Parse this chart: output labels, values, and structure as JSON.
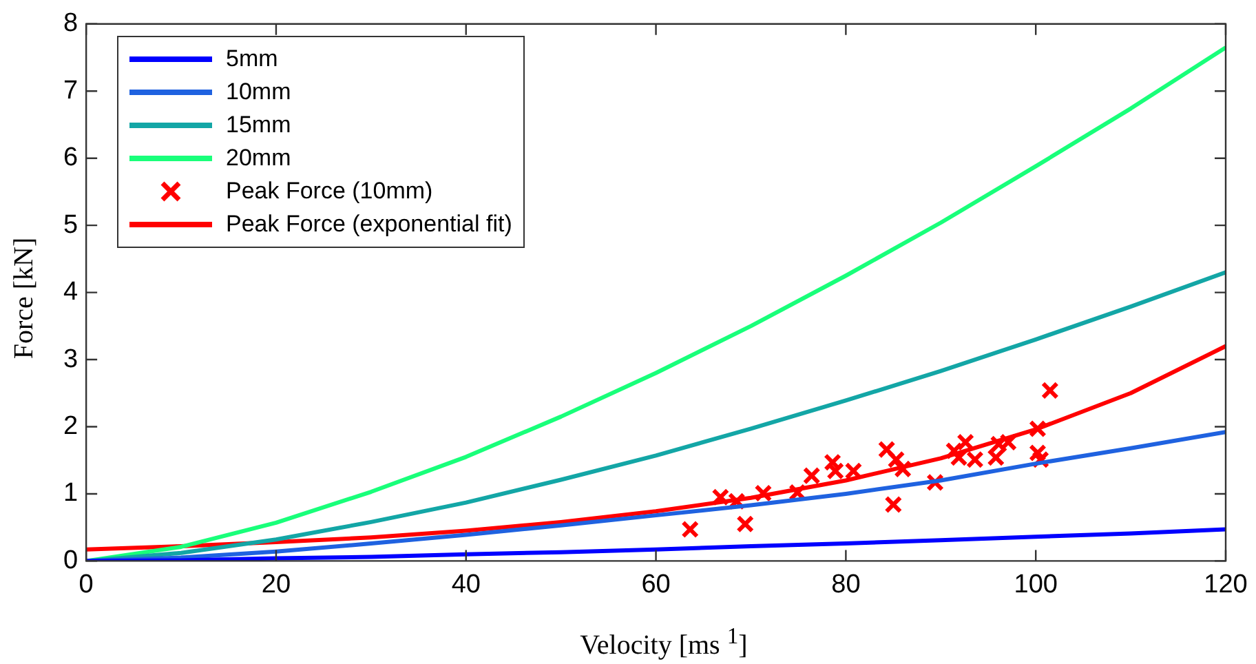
{
  "chart_data": {
    "type": "line",
    "xlabel": "Velocity [ms $^{1}$]",
    "ylabel": "Force [kN]",
    "xlim": [
      0,
      120
    ],
    "xticks": [
      0,
      20,
      40,
      60,
      80,
      100,
      120
    ],
    "ylim": [
      0,
      8
    ],
    "yticks": [
      0,
      1,
      2,
      3,
      4,
      5,
      6,
      7,
      8
    ],
    "grid": false,
    "legend": "top left",
    "marker": "none",
    "line_style": "solid",
    "x": [
      0,
      10,
      20,
      30,
      40,
      50,
      60,
      70,
      80,
      90,
      100,
      110,
      120
    ],
    "series": [
      {
        "name": "5mm",
        "color": "#0000ff",
        "values": [
          0,
          0.01,
          0.04,
          0.06,
          0.1,
          0.13,
          0.17,
          0.22,
          0.26,
          0.31,
          0.36,
          0.41,
          0.47
        ]
      },
      {
        "name": "10mm",
        "color": "#1f62e0",
        "values": [
          0,
          0.05,
          0.14,
          0.26,
          0.39,
          0.53,
          0.68,
          0.83,
          1.0,
          1.2,
          1.45,
          1.68,
          1.92
        ]
      },
      {
        "name": "15mm",
        "color": "#13a6a6",
        "values": [
          0,
          0.12,
          0.32,
          0.58,
          0.87,
          1.21,
          1.57,
          1.97,
          2.39,
          2.83,
          3.3,
          3.79,
          4.3
        ]
      },
      {
        "name": "20mm",
        "color": "#19ff7a",
        "values": [
          0,
          0.21,
          0.57,
          1.03,
          1.55,
          2.15,
          2.8,
          3.5,
          4.25,
          5.04,
          5.88,
          6.74,
          7.65
        ]
      },
      {
        "name": "Peak Force (10mm)",
        "type": "scatter",
        "marker": "cross",
        "color": "#ff0000",
        "x": [
          63.6,
          66.8,
          68.5,
          69.4,
          71.3,
          74.9,
          76.4,
          78.6,
          78.9,
          80.8,
          84.3,
          85.0,
          85.3,
          86.0,
          89.4,
          91.4,
          91.9,
          92.6,
          93.6,
          95.8,
          96.1,
          97.1,
          100.2,
          100.2,
          100.5,
          101.5
        ],
        "values": [
          0.47,
          0.95,
          0.89,
          0.55,
          1.01,
          1.02,
          1.27,
          1.47,
          1.34,
          1.34,
          1.66,
          0.84,
          1.51,
          1.37,
          1.17,
          1.64,
          1.54,
          1.77,
          1.51,
          1.54,
          1.74,
          1.77,
          1.97,
          1.61,
          1.51,
          2.54
        ]
      },
      {
        "name": "Peak Force (exponential fit)",
        "color": "#ff0000",
        "values": [
          0.17,
          0.22,
          0.28,
          0.35,
          0.45,
          0.58,
          0.74,
          0.94,
          1.2,
          1.53,
          1.96,
          2.5,
          3.2
        ]
      }
    ]
  }
}
